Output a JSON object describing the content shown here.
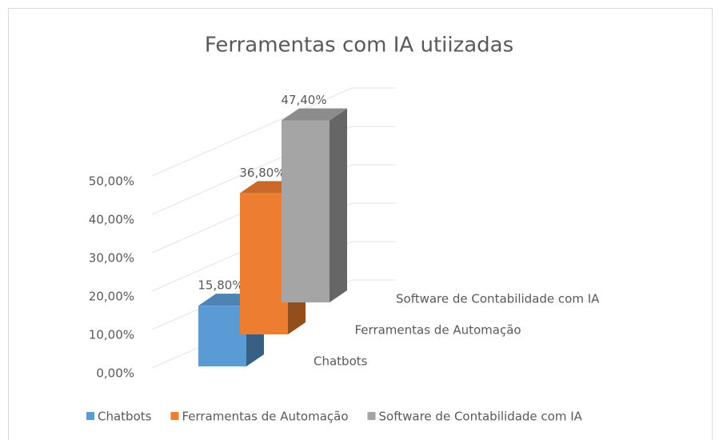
{
  "chart_data": {
    "type": "bar3d",
    "title": "Ferramentas com IA utiizadas",
    "series": [
      {
        "name": "Chatbots",
        "color": "#5b9bd5",
        "values": [
          15.8
        ],
        "value_labels": [
          "15,80%"
        ]
      },
      {
        "name": "Ferramentas de Automação",
        "color": "#ed7d31",
        "values": [
          36.8
        ],
        "value_labels": [
          "36,80%"
        ]
      },
      {
        "name": "Software de Contabilidade com IA",
        "color": "#a5a5a5",
        "values": [
          47.4
        ],
        "value_labels": [
          "47,40%"
        ]
      }
    ],
    "ylim": [
      0,
      50
    ],
    "yticks": [
      {
        "value": 0,
        "label": "0,00%"
      },
      {
        "value": 10,
        "label": "10,00%"
      },
      {
        "value": 20,
        "label": "20,00%"
      },
      {
        "value": 30,
        "label": "30,00%"
      },
      {
        "value": 40,
        "label": "40,00%"
      },
      {
        "value": 50,
        "label": "50,00%"
      }
    ],
    "grid": true,
    "legend": "bottom"
  }
}
